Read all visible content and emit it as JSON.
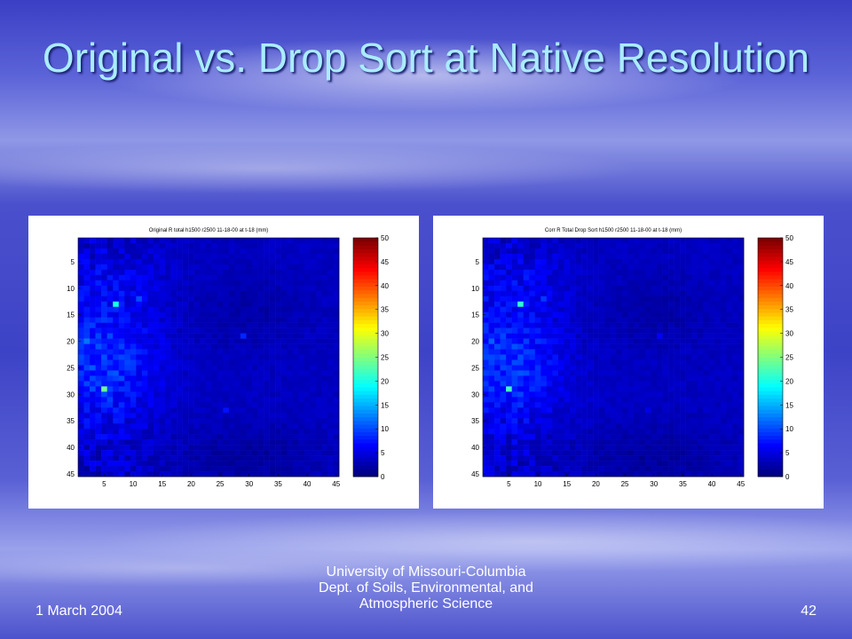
{
  "slide": {
    "title": "Original vs. Drop Sort at Native Resolution",
    "date": "1 March 2004",
    "affiliation_line1": "University of Missouri-Columbia",
    "affiliation_line2": "Dept. of Soils, Environmental, and",
    "affiliation_line3": "Atmospheric Science",
    "page_number": "42"
  },
  "colors": {
    "title": "#a9ecff",
    "footer_text": "#ffffff",
    "colormap": "jet"
  },
  "chart_data": [
    {
      "type": "heatmap",
      "title": "Original R total h1500 r2500 11-18-00 at t-18 (mm)",
      "xlabel": "",
      "ylabel": "",
      "xlim": [
        1,
        45
      ],
      "ylim": [
        1,
        45
      ],
      "x_ticks": [
        "5",
        "10",
        "15",
        "20",
        "25",
        "30",
        "35",
        "40",
        "45"
      ],
      "y_ticks": [
        "5",
        "10",
        "15",
        "20",
        "25",
        "30",
        "35",
        "40",
        "45"
      ],
      "colorbar": {
        "range": [
          0,
          50
        ],
        "ticks": [
          "0",
          "5",
          "10",
          "15",
          "20",
          "25",
          "30",
          "35",
          "40",
          "45",
          "50"
        ]
      },
      "colormap": "jet",
      "approx_hotspots": [
        {
          "x": 7,
          "y": 13,
          "value": 20
        },
        {
          "x": 5,
          "y": 29,
          "value": 24
        },
        {
          "x": 2,
          "y": 20,
          "value": 12
        },
        {
          "x": 11,
          "y": 12,
          "value": 10
        },
        {
          "x": 29,
          "y": 19,
          "value": 8
        },
        {
          "x": 26,
          "y": 33,
          "value": 7
        }
      ]
    },
    {
      "type": "heatmap",
      "title": "Corr R Total Drop Sort h1500 r2500 11-18-00 at t-18 (mm)",
      "xlabel": "",
      "ylabel": "",
      "xlim": [
        1,
        45
      ],
      "ylim": [
        1,
        45
      ],
      "x_ticks": [
        "5",
        "10",
        "15",
        "20",
        "25",
        "30",
        "35",
        "40",
        "45"
      ],
      "y_ticks": [
        "5",
        "10",
        "15",
        "20",
        "25",
        "30",
        "35",
        "40",
        "45"
      ],
      "colorbar": {
        "range": [
          0,
          50
        ],
        "ticks": [
          "0",
          "5",
          "10",
          "15",
          "20",
          "25",
          "30",
          "35",
          "40",
          "45",
          "50"
        ]
      },
      "colormap": "jet",
      "approx_hotspots": [
        {
          "x": 7,
          "y": 13,
          "value": 21
        },
        {
          "x": 5,
          "y": 29,
          "value": 22
        },
        {
          "x": 2,
          "y": 20,
          "value": 11
        },
        {
          "x": 11,
          "y": 12,
          "value": 9
        },
        {
          "x": 31,
          "y": 19,
          "value": 6
        },
        {
          "x": 29,
          "y": 33,
          "value": 5
        }
      ]
    }
  ]
}
